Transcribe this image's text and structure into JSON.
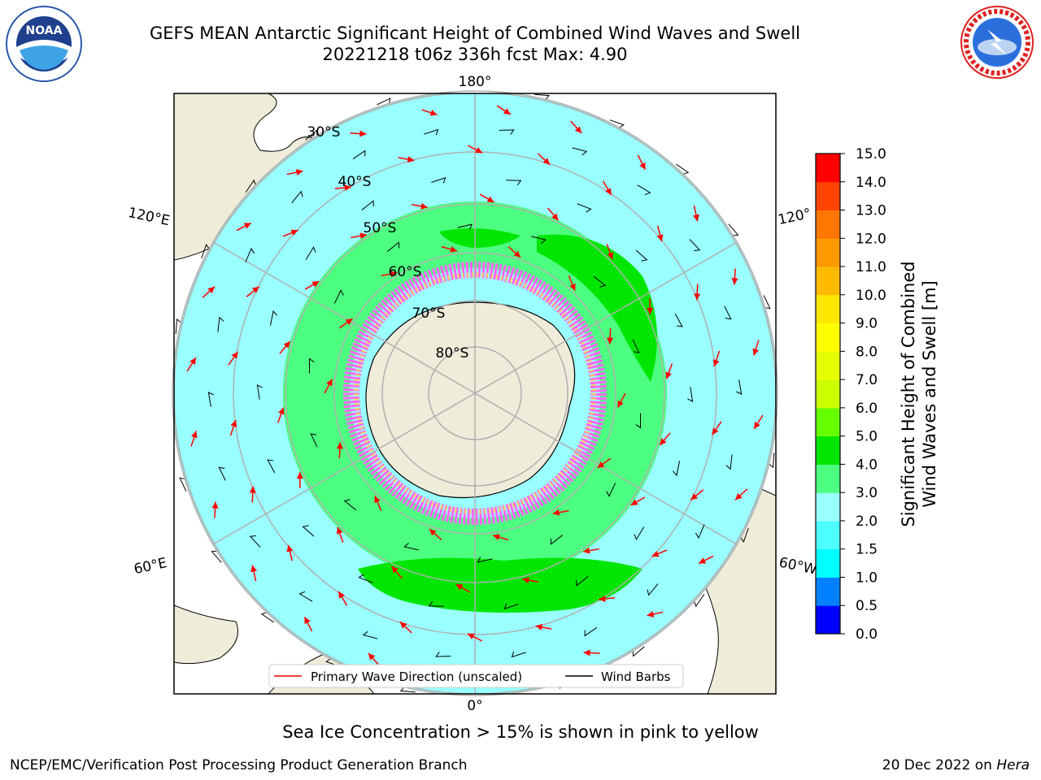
{
  "title": {
    "line1": "GEFS MEAN Antarctic Significant Height of Combined Wind Waves and Swell",
    "line2": "20221218 t06z 336h fcst   Max: 4.90"
  },
  "logos": {
    "left": "NOAA",
    "left_ring_text": "NATIONAL OCEANIC AND ATMOSPHERIC ADMINISTRATION · U.S. DEPARTMENT OF COMMERCE",
    "right_ring_text": "NATIONAL WEATHER SERVICE"
  },
  "map": {
    "projection": "south-polar-stereographic",
    "longitude_labels": {
      "top": "180°",
      "bottom": "0°",
      "upper_left": "120°E",
      "lower_left": "60°E",
      "upper_right": "120°",
      "lower_right": "60°W"
    },
    "latitude_labels": [
      "30°S",
      "40°S",
      "50°S",
      "60°S",
      "70°S",
      "80°S"
    ],
    "colors": {
      "land": "#efecda",
      "ocean_low": "#99ffff",
      "ocean_mid": "#4dff80",
      "ocean_high": "#00e600",
      "ice": "#ff66ff",
      "wave_arrow": "#ff0000",
      "wind_barb": "#000000",
      "grid": "#b0b0b0"
    }
  },
  "legend": {
    "items": [
      {
        "label": "Primary Wave Direction (unscaled)",
        "color": "#ff0000"
      },
      {
        "label": "Wind Barbs",
        "color": "#000000"
      }
    ]
  },
  "colorbar": {
    "title_line1": "Significant Height of Combined",
    "title_line2": "Wind Waves and Swell [m]",
    "ticks": [
      "0.0",
      "0.5",
      "1.0",
      "1.5",
      "2.0",
      "3.0",
      "4.0",
      "5.0",
      "6.0",
      "7.0",
      "8.0",
      "9.0",
      "10.0",
      "11.0",
      "12.0",
      "13.0",
      "14.0",
      "15.0"
    ],
    "colors": [
      "#0000ff",
      "#0080ff",
      "#00ffff",
      "#4dffff",
      "#99ffff",
      "#4dff80",
      "#00e600",
      "#66ff00",
      "#ccff00",
      "#e6ff00",
      "#ffff00",
      "#ffe600",
      "#ffbb00",
      "#ff9900",
      "#ff7700",
      "#ff4400",
      "#ff0000"
    ]
  },
  "footer": {
    "note": "Sea Ice Concentration > 15% is shown in pink to yellow",
    "credit": "NCEP/EMC/Verification Post Processing Product Generation Branch",
    "date_prefix": "20 Dec 2022 on ",
    "machine": "Hera"
  }
}
